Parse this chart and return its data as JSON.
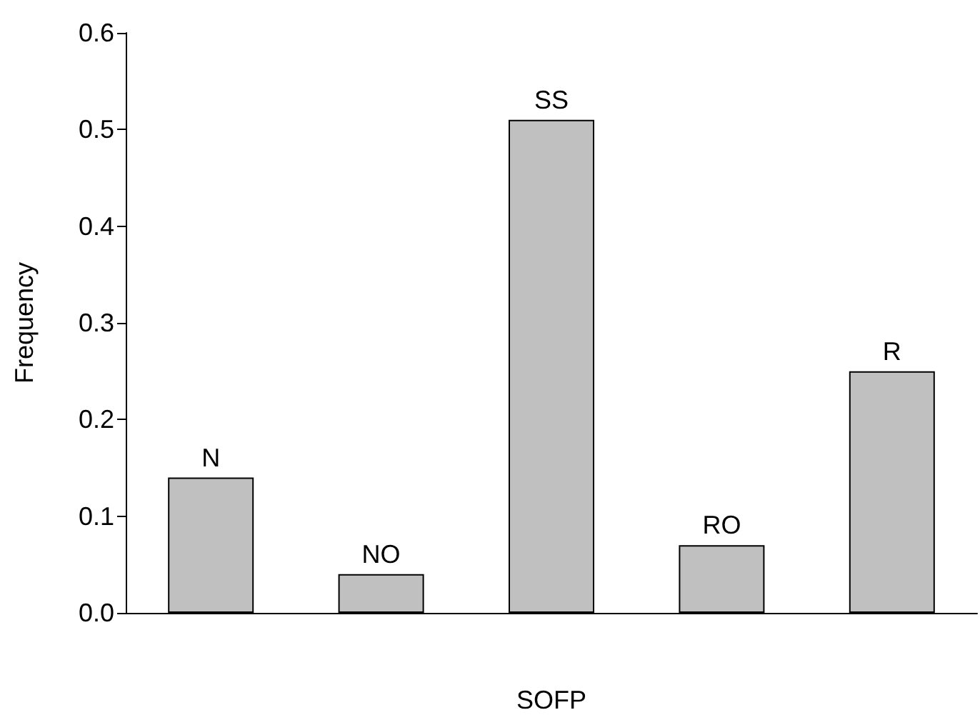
{
  "chart_data": {
    "type": "bar",
    "xlabel": "SOFP",
    "ylabel": "Frequency",
    "categories": [
      "N",
      "NO",
      "SS",
      "RO",
      "R"
    ],
    "values": [
      0.14,
      0.04,
      0.51,
      0.07,
      0.25
    ],
    "color": "#c0c0c0",
    "ylim": [
      0,
      0.6
    ],
    "yticks": [
      {
        "value": 0,
        "label": "0.0"
      },
      {
        "value": 0.1,
        "label": "0.1"
      },
      {
        "value": 0.2,
        "label": "0.2"
      },
      {
        "value": 0.3,
        "label": "0.3"
      },
      {
        "value": 0.4,
        "label": "0.4"
      },
      {
        "value": 0.5,
        "label": "0.5"
      },
      {
        "value": 0.6,
        "label": "0.6"
      }
    ],
    "grid": false
  }
}
